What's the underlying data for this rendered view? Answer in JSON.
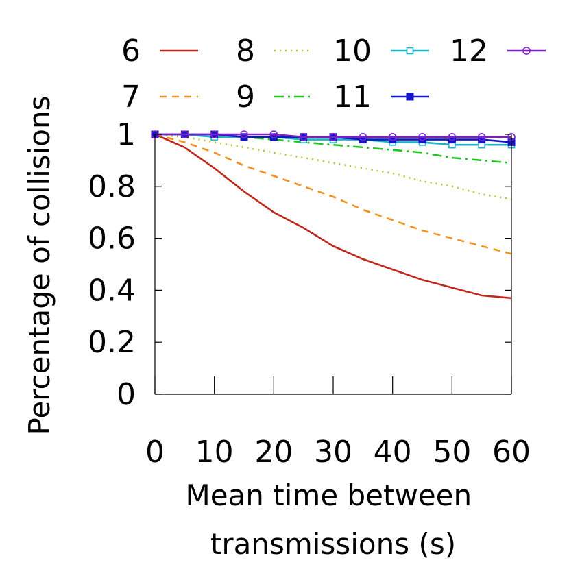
{
  "chart_data": {
    "type": "line",
    "xlabel": "Mean time between transmissions (s)",
    "xlabel_lines": [
      "Mean time between",
      "transmissions (s)"
    ],
    "ylabel": "Percentage of collisions",
    "xlim": [
      0,
      60
    ],
    "ylim": [
      0,
      1
    ],
    "xticks": [
      0,
      10,
      20,
      30,
      40,
      50,
      60
    ],
    "xtick_labels": [
      "0",
      "10",
      "20",
      "30",
      "40",
      "50",
      "60"
    ],
    "yticks": [
      0,
      0.2,
      0.4,
      0.6,
      0.8,
      1
    ],
    "ytick_labels": [
      "0",
      "0.2",
      "0.4",
      "0.6",
      "0.8",
      "1"
    ],
    "grid": false,
    "legend_position": "top",
    "x": [
      0,
      5,
      10,
      15,
      20,
      25,
      30,
      35,
      40,
      45,
      50,
      55,
      60
    ],
    "series": [
      {
        "name": "6",
        "color": "#c0281c",
        "style": "solid",
        "marker": "none",
        "values": [
          1.0,
          0.95,
          0.87,
          0.78,
          0.7,
          0.64,
          0.57,
          0.52,
          0.48,
          0.44,
          0.41,
          0.38,
          0.37
        ]
      },
      {
        "name": "7",
        "color": "#f5901e",
        "style": "dashed",
        "marker": "none",
        "values": [
          1.0,
          0.97,
          0.93,
          0.88,
          0.84,
          0.8,
          0.76,
          0.71,
          0.67,
          0.63,
          0.6,
          0.57,
          0.54
        ]
      },
      {
        "name": "8",
        "color": "#b5c632",
        "style": "dotted",
        "marker": "none",
        "values": [
          1.0,
          0.99,
          0.97,
          0.95,
          0.93,
          0.91,
          0.89,
          0.87,
          0.85,
          0.82,
          0.8,
          0.77,
          0.75
        ]
      },
      {
        "name": "9",
        "color": "#22c422",
        "style": "dashdot",
        "marker": "none",
        "values": [
          1.0,
          1.0,
          0.99,
          0.99,
          0.98,
          0.97,
          0.96,
          0.95,
          0.94,
          0.93,
          0.91,
          0.9,
          0.89
        ]
      },
      {
        "name": "10",
        "color": "#1ab4cc",
        "style": "solid",
        "marker": "square-open",
        "values": [
          1.0,
          1.0,
          0.99,
          0.99,
          0.99,
          0.98,
          0.98,
          0.98,
          0.97,
          0.97,
          0.96,
          0.96,
          0.96
        ]
      },
      {
        "name": "11",
        "color": "#1414c8",
        "style": "solid",
        "marker": "square-filled",
        "values": [
          1.0,
          1.0,
          1.0,
          0.99,
          0.99,
          0.99,
          0.99,
          0.98,
          0.98,
          0.98,
          0.98,
          0.98,
          0.97
        ]
      },
      {
        "name": "12",
        "color": "#7a22c8",
        "style": "solid",
        "marker": "circle-open",
        "values": [
          1.0,
          1.0,
          1.0,
          1.0,
          1.0,
          0.99,
          0.99,
          0.99,
          0.99,
          0.99,
          0.99,
          0.99,
          0.99
        ]
      }
    ]
  }
}
